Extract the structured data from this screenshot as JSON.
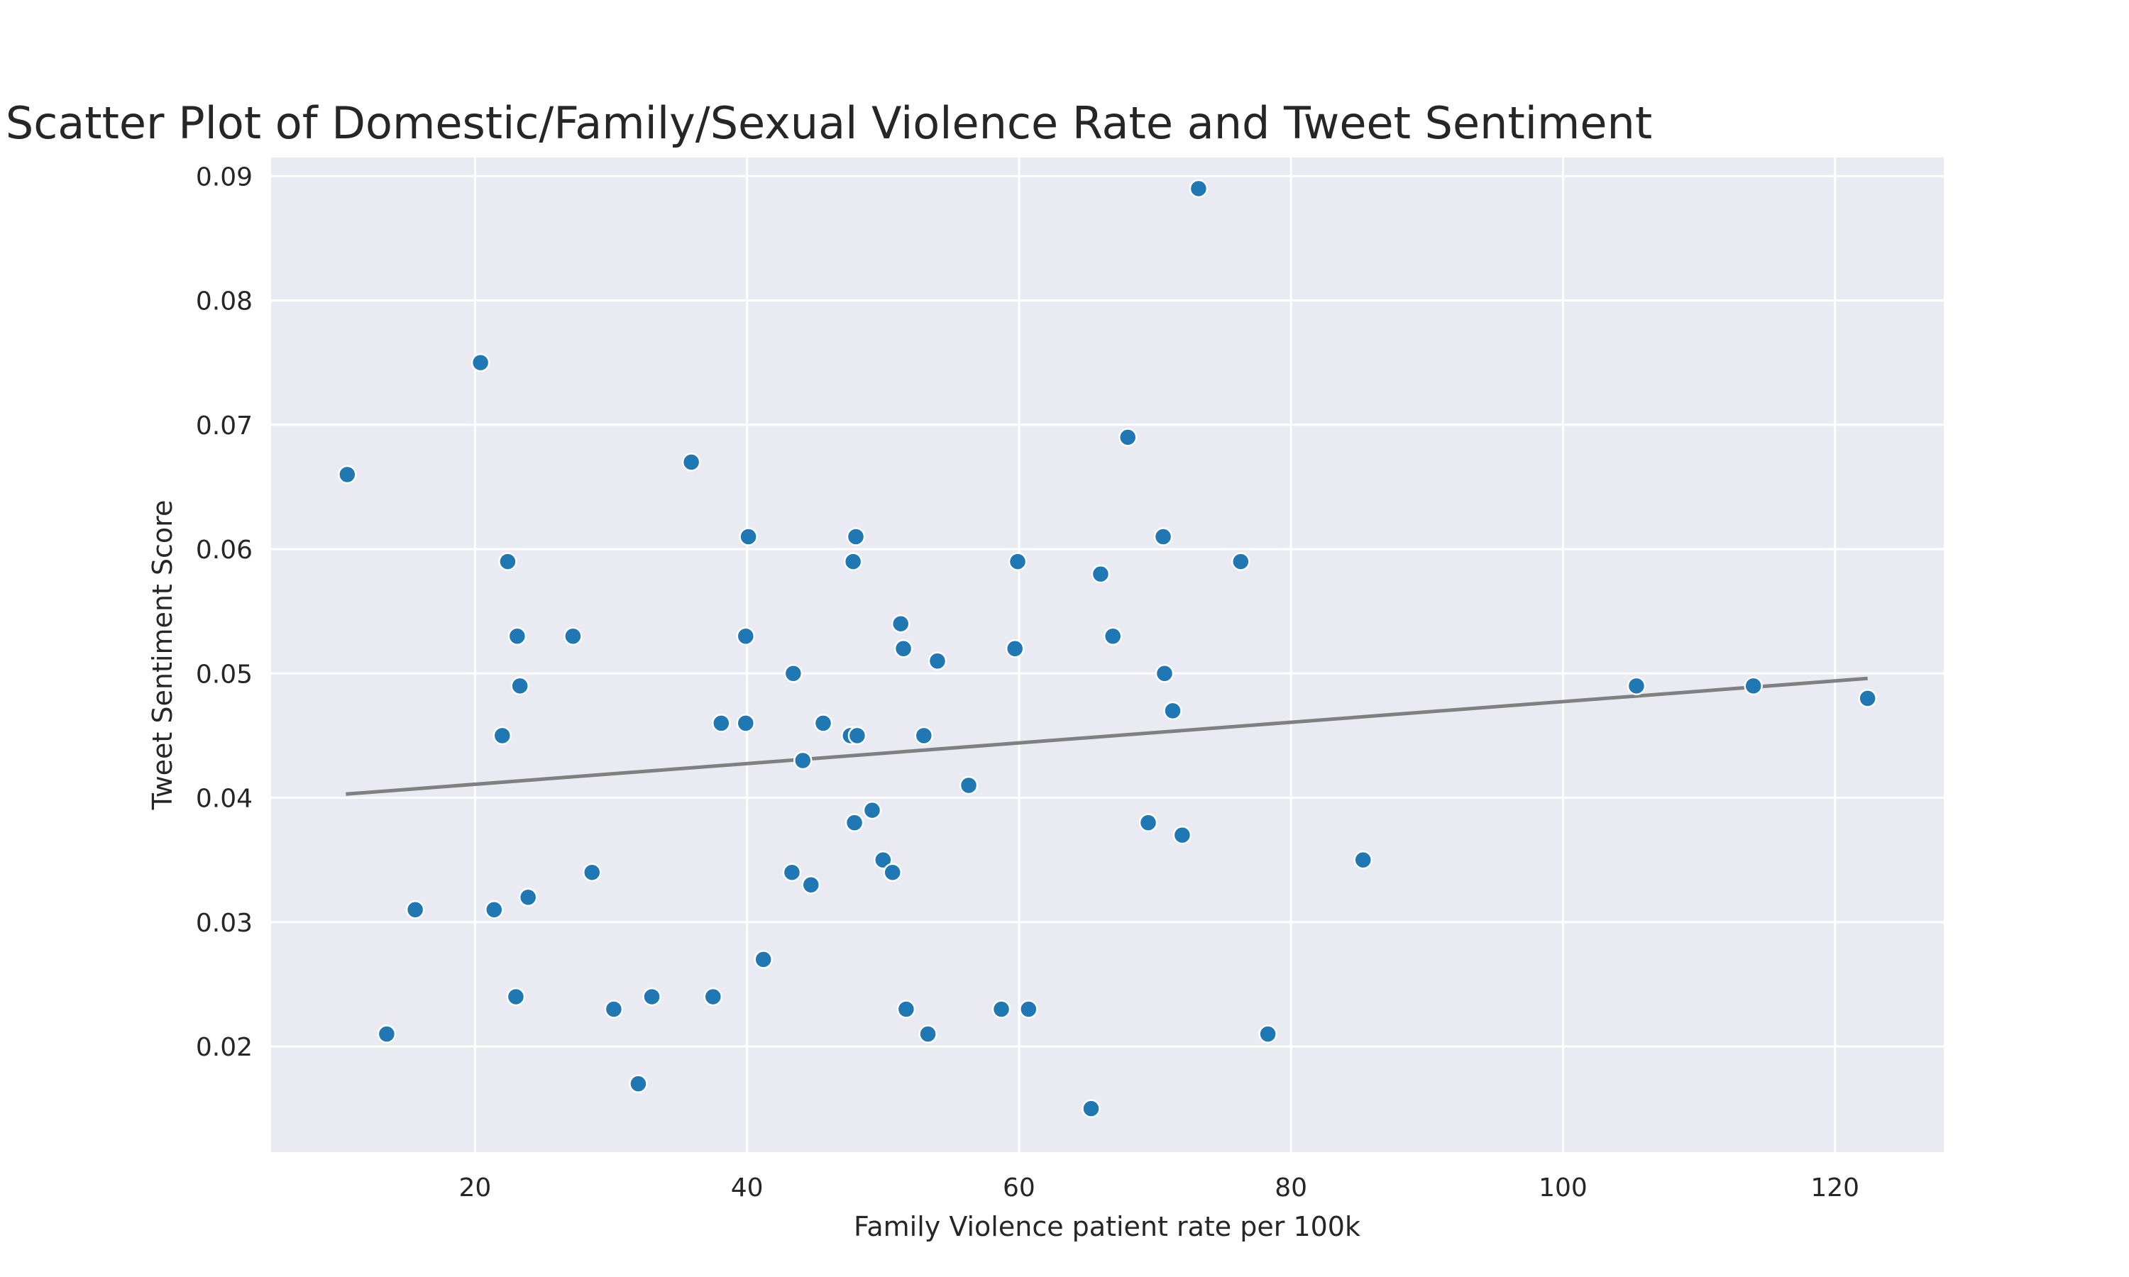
{
  "chart_data": {
    "type": "scatter",
    "title": "Scatter Plot of Domestic/Family/Sexual Violence Rate and Tweet Sentiment",
    "xlabel": "Family Violence patient rate per 100k",
    "ylabel": "Tweet Sentiment Score",
    "xlim": [
      5,
      128
    ],
    "ylim": [
      0.0115,
      0.0915
    ],
    "xticks": [
      20,
      40,
      60,
      80,
      100,
      120
    ],
    "yticks": [
      0.02,
      0.03,
      0.04,
      0.05,
      0.06,
      0.07,
      0.08,
      0.09
    ],
    "xtick_labels": [
      "20",
      "40",
      "60",
      "80",
      "100",
      "120"
    ],
    "ytick_labels": [
      "0.02",
      "0.03",
      "0.04",
      "0.05",
      "0.06",
      "0.07",
      "0.08",
      "0.09"
    ],
    "grid": true,
    "point_color": "#1f77b4",
    "trend_color": "#808080",
    "background_color": "#eaeaf2",
    "trendline": {
      "x": [
        10.5,
        122.4
      ],
      "y": [
        0.0403,
        0.0496
      ]
    },
    "points": [
      {
        "x": 10.6,
        "y": 0.066
      },
      {
        "x": 13.5,
        "y": 0.021
      },
      {
        "x": 15.6,
        "y": 0.031
      },
      {
        "x": 20.4,
        "y": 0.075
      },
      {
        "x": 21.4,
        "y": 0.031
      },
      {
        "x": 22.0,
        "y": 0.045
      },
      {
        "x": 22.4,
        "y": 0.059
      },
      {
        "x": 23.0,
        "y": 0.024
      },
      {
        "x": 23.1,
        "y": 0.053
      },
      {
        "x": 23.3,
        "y": 0.049
      },
      {
        "x": 23.9,
        "y": 0.032
      },
      {
        "x": 27.2,
        "y": 0.053
      },
      {
        "x": 28.6,
        "y": 0.034
      },
      {
        "x": 30.2,
        "y": 0.023
      },
      {
        "x": 32.0,
        "y": 0.017
      },
      {
        "x": 33.0,
        "y": 0.024
      },
      {
        "x": 35.9,
        "y": 0.067
      },
      {
        "x": 37.5,
        "y": 0.024
      },
      {
        "x": 38.1,
        "y": 0.046
      },
      {
        "x": 39.9,
        "y": 0.046
      },
      {
        "x": 39.9,
        "y": 0.053
      },
      {
        "x": 40.1,
        "y": 0.061
      },
      {
        "x": 41.2,
        "y": 0.027
      },
      {
        "x": 43.3,
        "y": 0.034
      },
      {
        "x": 43.4,
        "y": 0.05
      },
      {
        "x": 44.1,
        "y": 0.043
      },
      {
        "x": 44.7,
        "y": 0.033
      },
      {
        "x": 45.6,
        "y": 0.046
      },
      {
        "x": 47.6,
        "y": 0.045
      },
      {
        "x": 47.8,
        "y": 0.059
      },
      {
        "x": 47.9,
        "y": 0.038
      },
      {
        "x": 48.0,
        "y": 0.061
      },
      {
        "x": 48.1,
        "y": 0.045
      },
      {
        "x": 49.2,
        "y": 0.039
      },
      {
        "x": 50.0,
        "y": 0.035
      },
      {
        "x": 50.7,
        "y": 0.034
      },
      {
        "x": 51.3,
        "y": 0.054
      },
      {
        "x": 51.5,
        "y": 0.052
      },
      {
        "x": 51.7,
        "y": 0.023
      },
      {
        "x": 53.0,
        "y": 0.045
      },
      {
        "x": 53.3,
        "y": 0.021
      },
      {
        "x": 54.0,
        "y": 0.051
      },
      {
        "x": 56.3,
        "y": 0.041
      },
      {
        "x": 58.7,
        "y": 0.023
      },
      {
        "x": 59.7,
        "y": 0.052
      },
      {
        "x": 59.9,
        "y": 0.059
      },
      {
        "x": 60.7,
        "y": 0.023
      },
      {
        "x": 65.3,
        "y": 0.015
      },
      {
        "x": 66.0,
        "y": 0.058
      },
      {
        "x": 66.9,
        "y": 0.053
      },
      {
        "x": 68.0,
        "y": 0.069
      },
      {
        "x": 69.5,
        "y": 0.038
      },
      {
        "x": 70.6,
        "y": 0.061
      },
      {
        "x": 70.7,
        "y": 0.05
      },
      {
        "x": 71.3,
        "y": 0.047
      },
      {
        "x": 72.0,
        "y": 0.037
      },
      {
        "x": 73.2,
        "y": 0.089
      },
      {
        "x": 76.3,
        "y": 0.059
      },
      {
        "x": 78.3,
        "y": 0.021
      },
      {
        "x": 85.3,
        "y": 0.035
      },
      {
        "x": 105.4,
        "y": 0.049
      },
      {
        "x": 114.0,
        "y": 0.049
      },
      {
        "x": 122.4,
        "y": 0.048
      }
    ]
  }
}
